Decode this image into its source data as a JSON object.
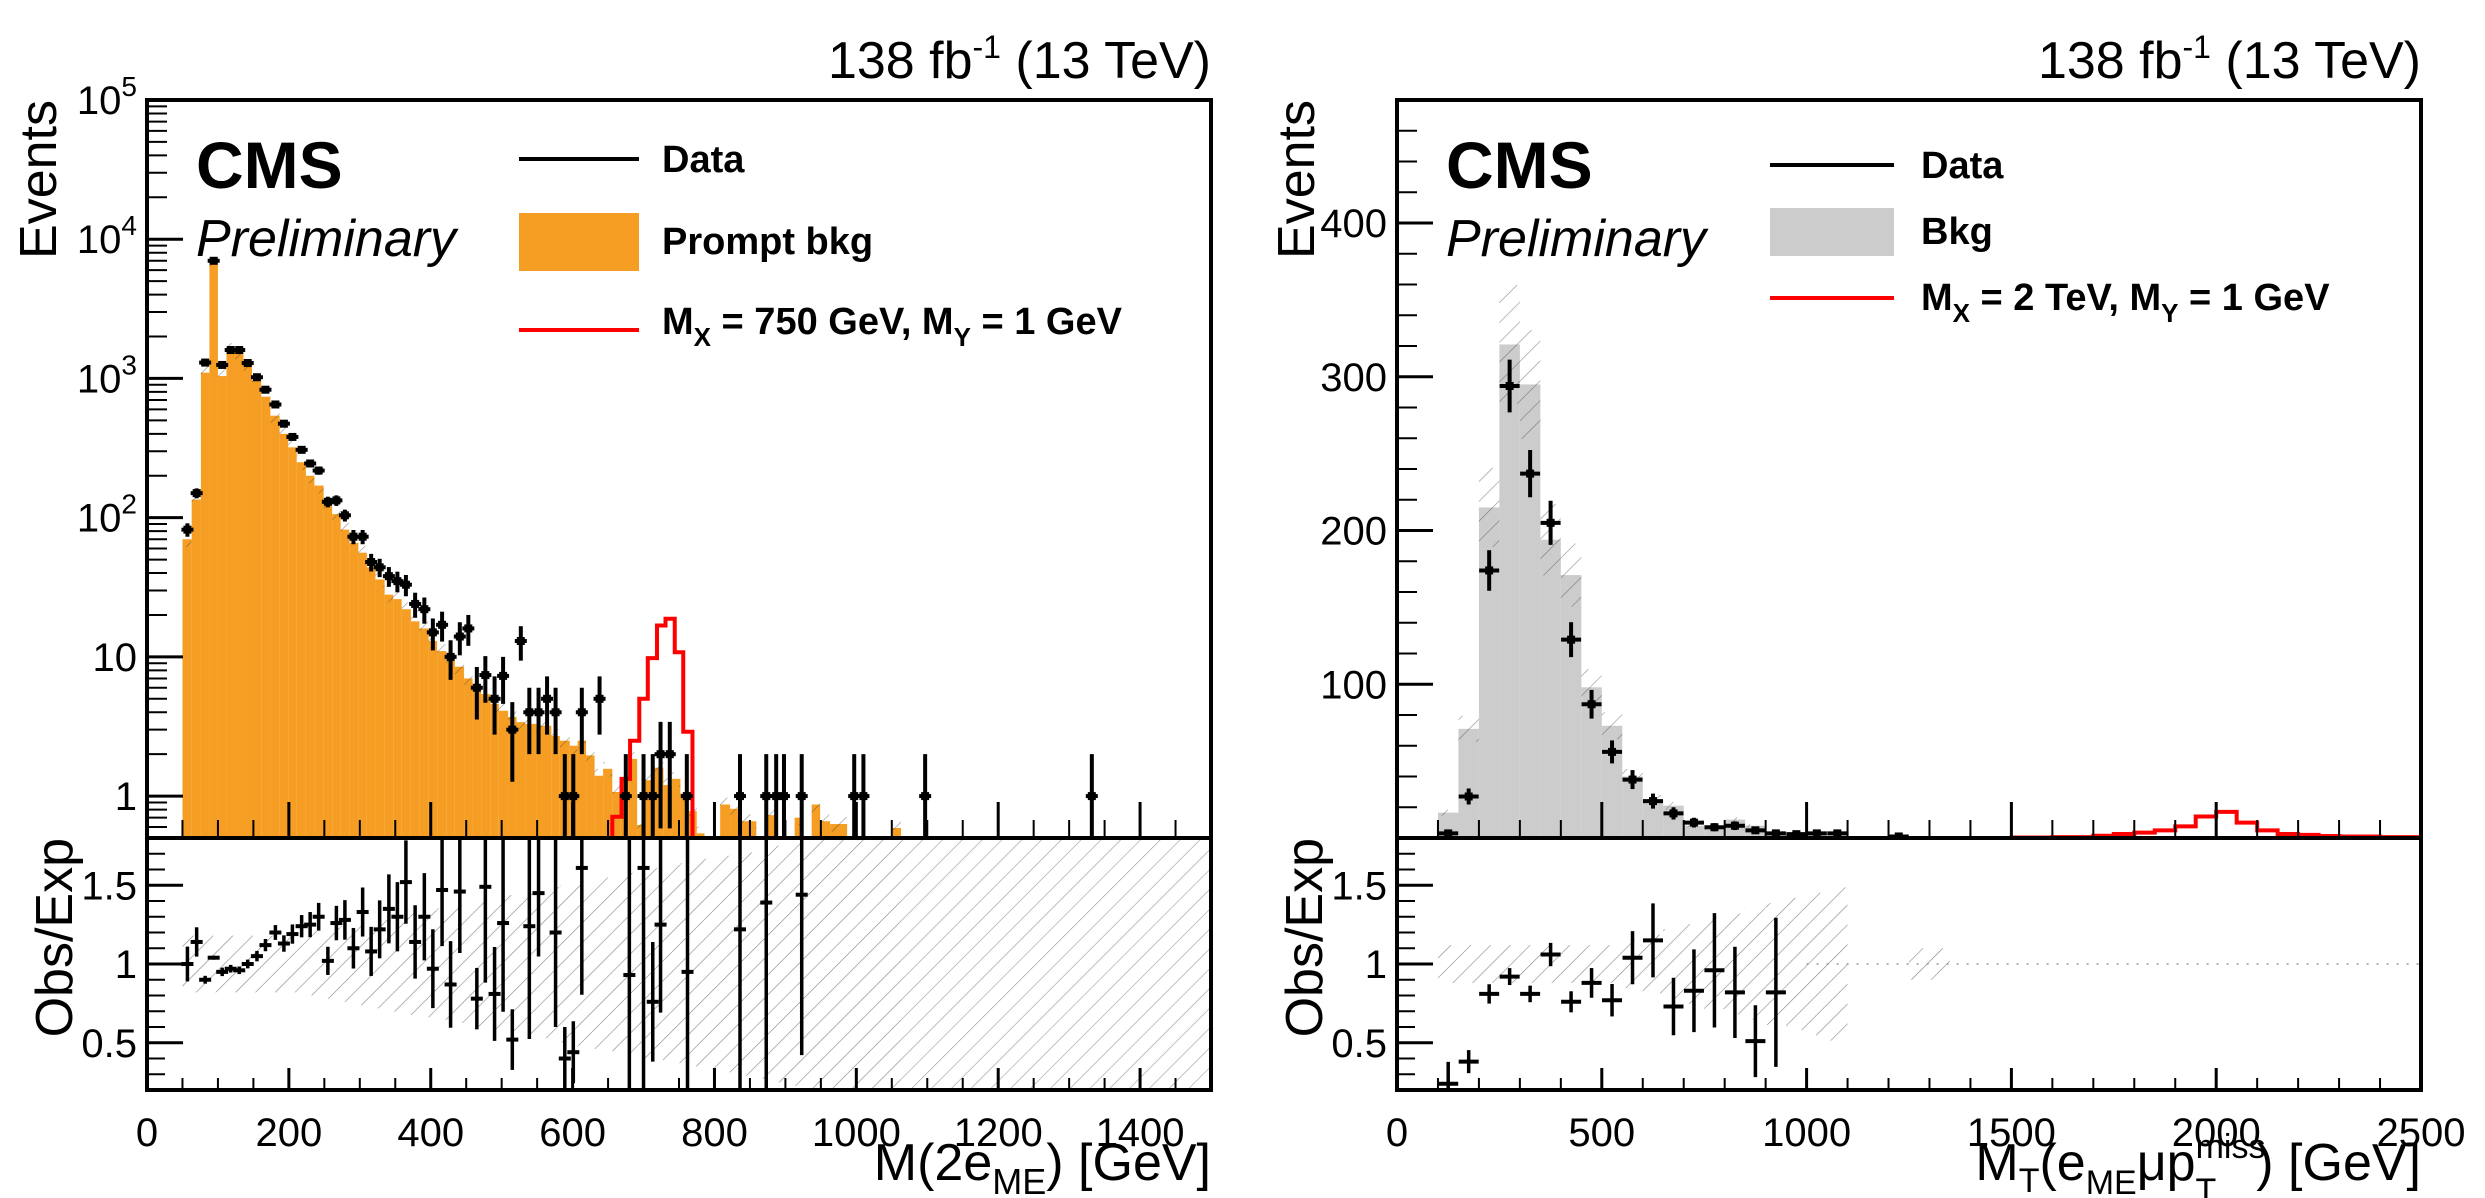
{
  "figure": {
    "panels_count": 2
  },
  "chart_data": [
    {
      "type": "bar",
      "name": "left",
      "lumi_label": "138 fb",
      "lumi_sup": "-1",
      "lumi_suffix": " (13 TeV)",
      "experiment": "CMS",
      "status": "Preliminary",
      "title": "",
      "ylabel": "Events",
      "xlabel_main": "M(2e",
      "xlabel_sub": "ME",
      "xlabel_tail": ") [GeV]",
      "ratio_ylabel": "Obs/Exp",
      "yscale": "log",
      "ylim": [
        0.5,
        100000
      ],
      "xlim": [
        0,
        1500
      ],
      "ratio_ylim": [
        0.2,
        1.8
      ],
      "xticks": [
        0,
        200,
        400,
        600,
        800,
        1000,
        1200,
        1400
      ],
      "yticks": [
        {
          "value": 1,
          "base": "1",
          "exp": ""
        },
        {
          "value": 10,
          "base": "10",
          "exp": ""
        },
        {
          "value": 100,
          "base": "10",
          "exp": "2"
        },
        {
          "value": 1000,
          "base": "10",
          "exp": "3"
        },
        {
          "value": 10000,
          "base": "10",
          "exp": "4"
        },
        {
          "value": 100000,
          "base": "10",
          "exp": "5"
        }
      ],
      "ratio_yticks": [
        0.5,
        1,
        1.5
      ],
      "legend": {
        "placement": "top-center",
        "entries": [
          {
            "label": "Data",
            "kind": "line",
            "color": "#000000"
          },
          {
            "label": "Prompt bkg",
            "kind": "fill",
            "color": "#f59e23"
          },
          {
            "label_main": "M",
            "sub1": "X",
            "mid": " = 750 GeV, M",
            "sub2": "Y",
            "tail": " = 1 GeV",
            "kind": "line",
            "color": "#ff0000"
          }
        ]
      },
      "colors": {
        "background_fill": "#f59e23",
        "signal": "#ff0000",
        "data": "#000000"
      },
      "data": {
        "x": [
          57,
          70,
          82,
          94,
          106,
          118,
          130,
          142,
          155,
          167,
          181,
          193,
          205,
          218,
          230,
          242,
          255,
          267,
          279,
          291,
          304,
          316,
          328,
          341,
          353,
          365,
          378,
          391,
          403,
          416,
          428,
          441,
          453,
          465,
          477,
          490,
          502,
          515,
          527,
          539,
          552,
          564,
          576,
          589,
          601,
          613,
          638,
          675,
          700,
          713,
          724,
          737,
          761,
          836,
          873,
          887,
          898,
          923,
          997,
          1010,
          1097,
          1332
        ],
        "values": [
          82,
          150,
          1300,
          7000,
          1250,
          1600,
          1600,
          1290,
          1020,
          830,
          650,
          473,
          380,
          307,
          245,
          218,
          130,
          133,
          104,
          73,
          73,
          48,
          44,
          38,
          35,
          33,
          24,
          22,
          15,
          17,
          10,
          14,
          16,
          6,
          7.4,
          5,
          7.3,
          3,
          13,
          4,
          4,
          5,
          4,
          1,
          1,
          4,
          5,
          1,
          1,
          1,
          2,
          2,
          1,
          1,
          1,
          1,
          1,
          1,
          1,
          1,
          1,
          1
        ]
      },
      "background": {
        "edges": [
          50,
          63,
          76,
          88,
          100,
          112,
          124,
          136,
          148,
          161,
          174,
          187,
          199,
          211,
          224,
          236,
          249,
          261,
          273,
          285,
          298,
          310,
          322,
          335,
          347,
          359,
          372,
          384,
          397,
          409,
          422,
          434,
          447,
          459,
          471,
          484,
          496,
          509,
          521,
          533,
          549,
          570,
          582,
          596,
          607,
          619,
          631,
          643,
          656,
          667,
          679,
          691,
          701,
          715,
          728,
          740,
          752,
          764,
          775,
          786,
          808,
          822,
          835,
          859,
          872,
          886,
          900,
          913,
          925,
          937,
          949,
          963,
          987,
          1001,
          1051,
          1063
        ],
        "values": [
          70,
          135,
          1100,
          7000,
          1040,
          1600,
          1560,
          1290,
          970,
          740,
          540,
          400,
          320,
          250,
          200,
          170,
          128,
          106,
          82,
          66,
          56,
          44,
          36,
          28,
          26,
          22,
          18,
          16,
          13,
          11,
          9.5,
          8.5,
          7,
          6.3,
          5.4,
          4.6,
          4.1,
          3.7,
          3.4,
          3.3,
          3.2,
          2.7,
          2.5,
          2.3,
          2.5,
          1.96,
          1.4,
          1.57,
          1.07,
          1.3,
          1.85,
          0.62,
          1.3,
          1.6,
          1.2,
          1.33,
          1.04,
          0.78,
          0.54,
          0,
          0.87,
          0.81,
          0.66,
          0,
          0.73,
          0,
          0,
          0.7,
          0,
          0.87,
          0.66,
          0.63,
          0,
          0,
          0.59
        ]
      },
      "signal": {
        "edges": [
          656,
          669,
          681,
          694,
          706,
          719,
          731,
          744,
          756,
          769
        ],
        "values": [
          0.71,
          1.33,
          2.5,
          5,
          9.8,
          16.8,
          18.8,
          10.8,
          2.9
        ]
      },
      "ratio": {
        "x": [
          57,
          70,
          82,
          94,
          106,
          118,
          130,
          142,
          155,
          167,
          181,
          193,
          205,
          218,
          230,
          242,
          255,
          267,
          279,
          291,
          304,
          316,
          328,
          341,
          353,
          365,
          378,
          391,
          403,
          416,
          428,
          441,
          465,
          477,
          490,
          502,
          515,
          539,
          552,
          576,
          589,
          601,
          613,
          680,
          700,
          713,
          724,
          762,
          836,
          873,
          923
        ],
        "values": [
          1.0,
          1.14,
          0.9,
          1.04,
          0.95,
          0.97,
          0.96,
          1.0,
          1.05,
          1.12,
          1.2,
          1.13,
          1.19,
          1.24,
          1.25,
          1.3,
          1.02,
          1.26,
          1.28,
          1.1,
          1.33,
          1.08,
          1.22,
          1.35,
          1.3,
          1.52,
          1.14,
          1.3,
          0.97,
          1.47,
          0.87,
          1.46,
          0.78,
          1.49,
          0.81,
          1.26,
          0.52,
          1.24,
          1.45,
          1.2,
          0.4,
          0.44,
          1.61,
          0.93,
          1.61,
          0.76,
          1.25,
          0.95,
          1.22,
          1.39,
          1.44
        ]
      }
    },
    {
      "type": "bar",
      "name": "right",
      "lumi_label": "138 fb",
      "lumi_sup": "-1",
      "lumi_suffix": " (13 TeV)",
      "experiment": "CMS",
      "status": "Preliminary",
      "title": "",
      "ylabel": "Events",
      "xlabel_main": "M",
      "xlabel_sub": "T",
      "xlabel_tail": "(e",
      "xlabel_sub2": "ME",
      "xlabel_tail2": "μp",
      "xlabel_sup3": "miss",
      "xlabel_sub3": "T",
      "xlabel_tail3": ") [GeV]",
      "ratio_ylabel": "Obs/Exp",
      "yscale": "linear",
      "ylim": [
        0,
        480
      ],
      "xlim": [
        0,
        2500
      ],
      "ratio_ylim": [
        0.2,
        1.8
      ],
      "xticks": [
        0,
        500,
        1000,
        1500,
        2000,
        2500
      ],
      "yticks": [
        {
          "value": 100,
          "base": "100",
          "exp": ""
        },
        {
          "value": 200,
          "base": "200",
          "exp": ""
        },
        {
          "value": 300,
          "base": "300",
          "exp": ""
        },
        {
          "value": 400,
          "base": "400",
          "exp": ""
        }
      ],
      "ratio_yticks": [
        0.5,
        1,
        1.5
      ],
      "legend": {
        "placement": "top-center",
        "entries": [
          {
            "label": "Data",
            "kind": "line",
            "color": "#000000"
          },
          {
            "label": "Bkg",
            "kind": "fill",
            "color": "#cccccc"
          },
          {
            "label_main": "M",
            "sub1": "X",
            "mid": " = 2 TeV, M",
            "sub2": "Y",
            "tail": " = 1 GeV",
            "kind": "line",
            "color": "#ff0000"
          }
        ]
      },
      "colors": {
        "background_fill": "#cccccc",
        "signal": "#ff0000",
        "data": "#000000"
      },
      "data": {
        "x": [
          125,
          175,
          225,
          275,
          325,
          375,
          425,
          475,
          525,
          575,
          625,
          675,
          725,
          775,
          825,
          875,
          925,
          975,
          1025,
          1075,
          1225
        ],
        "values": [
          3,
          27,
          174,
          294,
          237,
          205,
          129,
          87,
          56,
          38,
          24,
          16,
          10,
          7,
          8,
          5,
          3,
          2.5,
          3,
          3,
          1
        ]
      },
      "background": {
        "edges": [
          100,
          150,
          200,
          250,
          300,
          350,
          400,
          450,
          500,
          550,
          600,
          650,
          700,
          750,
          800,
          850,
          900,
          950,
          1000,
          1050,
          1100
        ],
        "values": [
          16.5,
          71,
          215,
          321,
          295,
          194,
          171,
          98,
          73,
          40,
          25,
          21,
          8,
          6,
          12,
          8,
          4,
          2.5,
          2,
          1.5
        ]
      },
      "signal": {
        "edges": [
          1500,
          1600,
          1700,
          1750,
          1800,
          1850,
          1900,
          1950,
          2000,
          2050,
          2100,
          2150,
          2200,
          2250,
          2300,
          2400,
          2500
        ],
        "values": [
          0.3,
          0.6,
          1.5,
          2.6,
          3.5,
          5,
          7.6,
          14,
          17,
          10,
          5,
          2.6,
          2,
          1.3,
          1,
          0.6
        ]
      },
      "ratio": {
        "x": [
          125,
          175,
          225,
          275,
          325,
          375,
          425,
          475,
          525,
          575,
          625,
          675,
          725,
          775,
          825,
          875,
          925
        ],
        "values": [
          0.24,
          0.38,
          0.81,
          0.92,
          0.81,
          1.06,
          0.76,
          0.88,
          0.77,
          1.04,
          1.15,
          0.73,
          0.83,
          0.96,
          0.82,
          0.51,
          0.82
        ]
      }
    }
  ]
}
